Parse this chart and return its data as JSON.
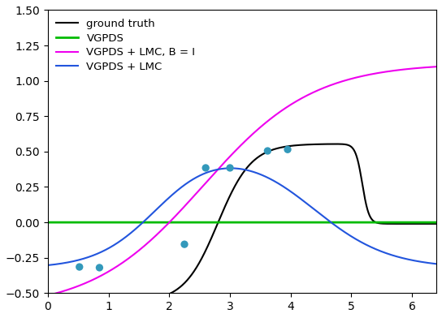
{
  "title": "",
  "xlim": [
    0,
    6.4
  ],
  "ylim": [
    -0.5,
    1.5
  ],
  "xticks": [
    0,
    1,
    2,
    3,
    4,
    5,
    6
  ],
  "yticks": [
    -0.5,
    -0.25,
    0.0,
    0.25,
    0.5,
    0.75,
    1.0,
    1.25,
    1.5
  ],
  "ground_truth_color": "#000000",
  "vgpds_color": "#00bb00",
  "lmc_b_i_color": "#ee00ee",
  "lmc_color": "#2255dd",
  "scatter_color": "#3399bb",
  "scatter_points": [
    [
      0.52,
      -0.315
    ],
    [
      0.85,
      -0.32
    ],
    [
      2.25,
      -0.155
    ],
    [
      2.6,
      0.385
    ],
    [
      3.0,
      0.385
    ],
    [
      3.62,
      0.505
    ],
    [
      3.95,
      0.515
    ]
  ],
  "legend_entries": [
    "ground truth",
    "VGPDS",
    "VGPDS + LMC, B = I",
    "VGPDS + LMC"
  ],
  "figsize": [
    5.44,
    3.92
  ],
  "dpi": 100
}
